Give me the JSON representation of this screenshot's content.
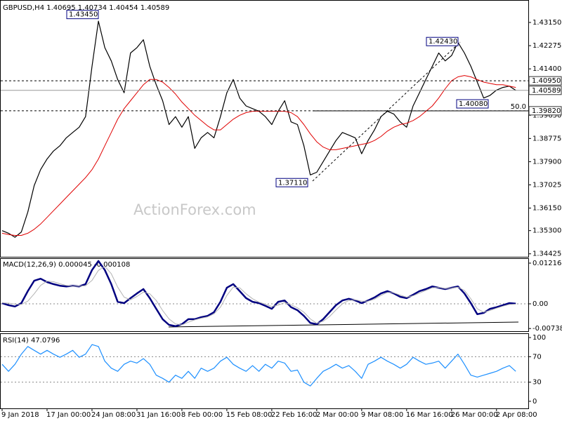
{
  "chart_data": [
    {
      "type": "line",
      "title": "GBPUSD,H4 1.40695 1.40734 1.40454 1.40589",
      "watermark": "ActionForex.com",
      "ylim": [
        1.34312,
        1.43997
      ],
      "yticks": [
        {
          "value": 1.4315,
          "label": "1.43150"
        },
        {
          "value": 1.42275,
          "label": "1.42275"
        },
        {
          "value": 1.414,
          "label": "1.41400"
        },
        {
          "value": 1.3965,
          "label": "1.39650"
        },
        {
          "value": 1.38775,
          "label": "1.38775"
        },
        {
          "value": 1.379,
          "label": "1.37900"
        },
        {
          "value": 1.37025,
          "label": "1.37025"
        },
        {
          "value": 1.3615,
          "label": "1.36150"
        },
        {
          "value": 1.353,
          "label": "1.35300"
        },
        {
          "value": 1.34425,
          "label": "1.34425"
        }
      ],
      "series": [
        {
          "color": "#000000",
          "values": [
            1.353,
            1.352,
            1.3505,
            1.3525,
            1.36,
            1.37,
            1.376,
            1.38,
            1.383,
            1.385,
            1.388,
            1.39,
            1.392,
            1.396,
            1.415,
            1.432,
            1.422,
            1.417,
            1.41,
            1.405,
            1.42,
            1.422,
            1.425,
            1.415,
            1.408,
            1.402,
            1.393,
            1.396,
            1.392,
            1.396,
            1.384,
            1.388,
            1.39,
            1.388,
            1.396,
            1.405,
            1.41,
            1.403,
            1.4,
            1.399,
            1.398,
            1.396,
            1.393,
            1.398,
            1.402,
            1.394,
            1.393,
            1.385,
            1.374,
            1.375,
            1.379,
            1.383,
            1.387,
            1.39,
            1.389,
            1.388,
            1.382,
            1.387,
            1.391,
            1.396,
            1.398,
            1.397,
            1.394,
            1.392,
            1.4,
            1.405,
            1.41,
            1.415,
            1.42,
            1.417,
            1.419,
            1.424,
            1.42,
            1.415,
            1.409,
            1.403,
            1.404,
            1.406,
            1.407,
            1.4075,
            1.40589
          ]
        },
        {
          "color": "#e00000",
          "values": [
            1.352,
            1.3515,
            1.3512,
            1.3512,
            1.352,
            1.3535,
            1.3555,
            1.358,
            1.3605,
            1.363,
            1.3655,
            1.368,
            1.3705,
            1.373,
            1.376,
            1.38,
            1.385,
            1.39,
            1.395,
            1.399,
            1.402,
            1.405,
            1.408,
            1.41,
            1.41,
            1.409,
            1.407,
            1.4045,
            1.4015,
            1.399,
            1.3965,
            1.3945,
            1.3925,
            1.391,
            1.391,
            1.393,
            1.395,
            1.3965,
            1.3975,
            1.398,
            1.398,
            1.398,
            1.398,
            1.398,
            1.398,
            1.3975,
            1.396,
            1.393,
            1.3895,
            1.3865,
            1.3845,
            1.3835,
            1.3835,
            1.384,
            1.3845,
            1.385,
            1.3855,
            1.386,
            1.387,
            1.3885,
            1.3905,
            1.392,
            1.393,
            1.3935,
            1.3945,
            1.396,
            1.398,
            1.4,
            1.403,
            1.4065,
            1.4095,
            1.411,
            1.4115,
            1.411,
            1.41,
            1.409,
            1.4085,
            1.408,
            1.408,
            1.4075,
            1.407
          ]
        }
      ],
      "levels": [
        {
          "value": 1.4095,
          "label": "1.40950",
          "style": "dashed"
        },
        {
          "value": 1.40589,
          "label": "1.40589",
          "style": "solid"
        },
        {
          "value": 1.3982,
          "label": "1.39820",
          "style": "dashed",
          "fib_label": "50.0"
        }
      ],
      "annotations": [
        {
          "value": 1.4345,
          "label": "1.43450"
        },
        {
          "value": 1.4243,
          "label": "1.42430"
        },
        {
          "value": 1.3711,
          "label": "1.37110"
        },
        {
          "value": 1.4008,
          "label": "1.40080"
        }
      ]
    },
    {
      "type": "line",
      "title": "MACD(12,26,9) 0.000045 -0.000108",
      "ylim": [
        -0.00818,
        0.01363
      ],
      "yticks": [
        0.012164,
        {
          "value": 0,
          "label": "0.00"
        },
        -0.007384
      ],
      "levels": [
        0
      ],
      "series": [
        {
          "color": "#000080",
          "values": [
            0.0002,
            -0.0004,
            -0.0008,
            0.0002,
            0.0038,
            0.0069,
            0.0075,
            0.0065,
            0.0059,
            0.0054,
            0.0052,
            0.0054,
            0.0052,
            0.0059,
            0.0101,
            0.0128,
            0.0101,
            0.0059,
            0.0006,
            0.0002,
            0.0017,
            0.0031,
            0.0044,
            0.0017,
            -0.0015,
            -0.0046,
            -0.0063,
            -0.0067,
            -0.0061,
            -0.0046,
            -0.0046,
            -0.004,
            -0.0036,
            -0.0025,
            0.0006,
            0.0048,
            0.0059,
            0.0038,
            0.0017,
            0.0006,
            0.0002,
            -0.0006,
            -0.0015,
            0.0006,
            0.001,
            -0.001,
            -0.0019,
            -0.0036,
            -0.0057,
            -0.0061,
            -0.0046,
            -0.0025,
            -0.0004,
            0.001,
            0.0015,
            0.001,
            0.0002,
            0.001,
            0.0019,
            0.0031,
            0.0038,
            0.0031,
            0.0021,
            0.0017,
            0.0027,
            0.0038,
            0.0044,
            0.0052,
            0.0048,
            0.0044,
            0.0048,
            0.0052,
            0.0031,
            0.0002,
            -0.0031,
            -0.0027,
            -0.0015,
            -0.001,
            -0.0004,
            0.0002,
            4.5e-05
          ]
        },
        {
          "color": "#b4b4b4",
          "values": [
            0.0003,
            0.0002,
            -0.0001,
            -0.0002,
            0.0008,
            0.003,
            0.0055,
            0.0068,
            0.0066,
            0.006,
            0.0055,
            0.0053,
            0.0053,
            0.0054,
            0.007,
            0.01,
            0.0112,
            0.009,
            0.005,
            0.002,
            0.0012,
            0.0022,
            0.0035,
            0.003,
            0.001,
            -0.002,
            -0.0045,
            -0.006,
            -0.0063,
            -0.0055,
            -0.0048,
            -0.0043,
            -0.0039,
            -0.003,
            -0.001,
            0.0025,
            0.005,
            0.0048,
            0.003,
            0.0015,
            0.0005,
            -0.0001,
            -0.0008,
            -0.0004,
            0.0004,
            -0.0003,
            -0.0012,
            -0.0025,
            -0.0045,
            -0.0058,
            -0.0052,
            -0.0038,
            -0.0018,
            0.0,
            0.001,
            0.0012,
            0.0008,
            0.0008,
            0.0014,
            0.0025,
            0.0034,
            0.0033,
            0.0026,
            0.002,
            0.0024,
            0.0032,
            0.004,
            0.0048,
            0.0049,
            0.0046,
            0.0047,
            0.005,
            0.004,
            0.0015,
            -0.0015,
            -0.0025,
            -0.002,
            -0.0013,
            -0.0007,
            -0.0002,
            -0.000108
          ]
        }
      ]
    },
    {
      "type": "line",
      "title": "RSI(14) 47.0796",
      "ylim": [
        -11.1,
        106.7
      ],
      "yticks": [
        100,
        70,
        30,
        0
      ],
      "levels": [
        70,
        30
      ],
      "categories": [
        "9 Jan 2018",
        null,
        null,
        null,
        null,
        null,
        null,
        "17 Jan 00:00",
        null,
        null,
        null,
        null,
        null,
        null,
        "24 Jan 08:00",
        null,
        null,
        null,
        null,
        null,
        null,
        "31 Jan 16:00",
        null,
        null,
        null,
        null,
        null,
        null,
        "8 Feb 00:00",
        null,
        null,
        null,
        null,
        null,
        null,
        "15 Feb 08:00",
        null,
        null,
        null,
        null,
        null,
        null,
        "22 Feb 16:00",
        null,
        null,
        null,
        null,
        null,
        null,
        "2 Mar 00:00",
        null,
        null,
        null,
        null,
        null,
        null,
        "9 Mar 08:00",
        null,
        null,
        null,
        null,
        null,
        null,
        "16 Mar 16:00",
        null,
        null,
        null,
        null,
        null,
        null,
        "26 Mar 00:00",
        null,
        null,
        null,
        null,
        null,
        null,
        "2 Apr 08:00",
        null,
        null,
        null
      ],
      "series": [
        {
          "color": "#1e90ff",
          "values": [
            58,
            47,
            58,
            74,
            86,
            80,
            74,
            80,
            74,
            69,
            74,
            80,
            69,
            74,
            89,
            86,
            63,
            52,
            47,
            58,
            63,
            60,
            67,
            58,
            41,
            36,
            30,
            41,
            36,
            47,
            36,
            52,
            47,
            52,
            63,
            69,
            58,
            52,
            47,
            56,
            47,
            58,
            52,
            63,
            60,
            47,
            49,
            30,
            24,
            36,
            47,
            52,
            58,
            52,
            56,
            47,
            36,
            58,
            63,
            69,
            63,
            58,
            52,
            58,
            69,
            63,
            58,
            60,
            63,
            52,
            63,
            74,
            58,
            41,
            38,
            41,
            44,
            47,
            52,
            56,
            47.0796
          ]
        }
      ]
    }
  ]
}
